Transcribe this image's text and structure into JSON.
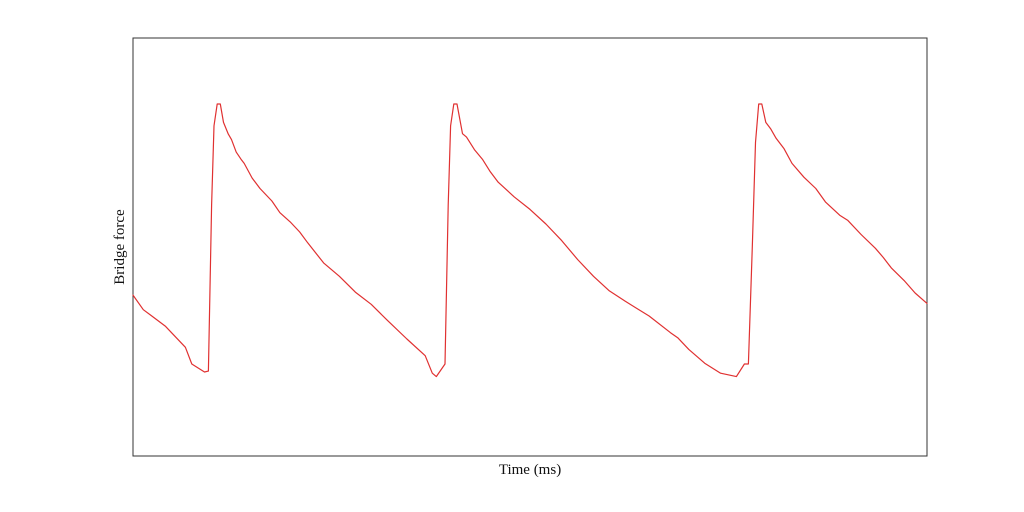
{
  "chart_data": {
    "type": "line",
    "title": "",
    "xlabel": "Time (ms)",
    "ylabel": "Bridge force",
    "xlim": [
      0,
      1
    ],
    "ylim": [
      0,
      1
    ],
    "grid": false,
    "legend": "none",
    "series": [
      {
        "color": "#e03131",
        "x": [
          0.0,
          0.013,
          0.023,
          0.041,
          0.066,
          0.074,
          0.09,
          0.095,
          0.099,
          0.102,
          0.106,
          0.11,
          0.114,
          0.12,
          0.124,
          0.13,
          0.136,
          0.14,
          0.15,
          0.16,
          0.175,
          0.185,
          0.198,
          0.21,
          0.22,
          0.24,
          0.26,
          0.28,
          0.3,
          0.32,
          0.345,
          0.368,
          0.377,
          0.382,
          0.393,
          0.397,
          0.4,
          0.404,
          0.408,
          0.415,
          0.42,
          0.43,
          0.44,
          0.45,
          0.46,
          0.48,
          0.5,
          0.52,
          0.54,
          0.56,
          0.58,
          0.6,
          0.62,
          0.65,
          0.677,
          0.686,
          0.7,
          0.72,
          0.74,
          0.76,
          0.77,
          0.775,
          0.78,
          0.784,
          0.788,
          0.792,
          0.797,
          0.803,
          0.81,
          0.82,
          0.83,
          0.845,
          0.86,
          0.872,
          0.89,
          0.9,
          0.917,
          0.935,
          0.945,
          0.955,
          0.971,
          0.985,
          1.0
        ],
        "y": [
          0.385,
          0.35,
          0.336,
          0.31,
          0.26,
          0.22,
          0.201,
          0.203,
          0.6,
          0.79,
          0.842,
          0.842,
          0.798,
          0.77,
          0.757,
          0.727,
          0.71,
          0.7,
          0.665,
          0.64,
          0.61,
          0.582,
          0.56,
          0.536,
          0.51,
          0.462,
          0.43,
          0.392,
          0.363,
          0.325,
          0.28,
          0.24,
          0.198,
          0.19,
          0.22,
          0.6,
          0.79,
          0.842,
          0.842,
          0.771,
          0.763,
          0.733,
          0.71,
          0.68,
          0.655,
          0.62,
          0.59,
          0.555,
          0.515,
          0.47,
          0.43,
          0.395,
          0.37,
          0.335,
          0.295,
          0.283,
          0.255,
          0.222,
          0.198,
          0.19,
          0.22,
          0.22,
          0.5,
          0.75,
          0.842,
          0.842,
          0.798,
          0.783,
          0.76,
          0.735,
          0.7,
          0.667,
          0.64,
          0.608,
          0.576,
          0.564,
          0.53,
          0.497,
          0.475,
          0.45,
          0.42,
          0.39,
          0.365
        ]
      }
    ]
  }
}
